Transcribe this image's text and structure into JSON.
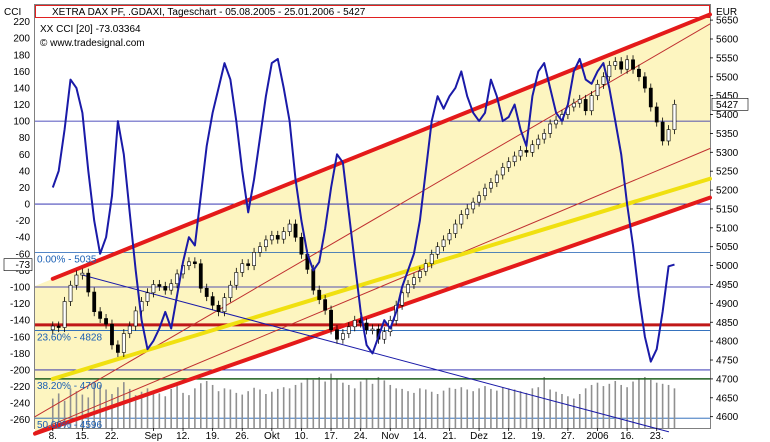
{
  "chart_data": {
    "type": "line",
    "title": "XETRA DAX PF, .GDAXI, Tageschart - 05.08.2005 - 25.01.2006 - 5427",
    "indicator_label": "XX CCI [20] -73.03364",
    "source_label": "© www.tradesignal.com",
    "left_axis": {
      "label": "CCI",
      "range": [
        -270,
        240
      ],
      "ticks": [
        220,
        200,
        180,
        160,
        140,
        120,
        100,
        80,
        60,
        40,
        20,
        0,
        -20,
        -40,
        -60,
        -80,
        -100,
        -120,
        -140,
        -160,
        -180,
        -200,
        -220,
        -240,
        -260
      ],
      "current_label": "-73"
    },
    "right_axis": {
      "label": "EUR",
      "range": [
        4570,
        5690
      ],
      "ticks": [
        5650,
        5600,
        5550,
        5500,
        5450,
        5400,
        5350,
        5300,
        5250,
        5200,
        5150,
        5100,
        5050,
        5000,
        4950,
        4900,
        4850,
        4800,
        4750,
        4700,
        4650,
        4600
      ],
      "current_label": "5427"
    },
    "x_ticks": [
      {
        "day": 3,
        "label": "8."
      },
      {
        "day": 8,
        "label": "15."
      },
      {
        "day": 13,
        "label": "22."
      },
      {
        "day": 20,
        "label": "Sep"
      },
      {
        "day": 25,
        "label": "12."
      },
      {
        "day": 30,
        "label": "19."
      },
      {
        "day": 35,
        "label": "26."
      },
      {
        "day": 40,
        "label": "Okt"
      },
      {
        "day": 45,
        "label": "10."
      },
      {
        "day": 50,
        "label": "17."
      },
      {
        "day": 55,
        "label": "24."
      },
      {
        "day": 60,
        "label": "Nov"
      },
      {
        "day": 65,
        "label": "14."
      },
      {
        "day": 70,
        "label": "21."
      },
      {
        "day": 75,
        "label": "Dez"
      },
      {
        "day": 80,
        "label": "12."
      },
      {
        "day": 85,
        "label": "19."
      },
      {
        "day": 90,
        "label": "27."
      },
      {
        "day": 95,
        "label": "2006"
      },
      {
        "day": 100,
        "label": "16."
      },
      {
        "day": 105,
        "label": "23."
      }
    ],
    "fib_levels": [
      {
        "label": "0.00% - 5035",
        "price": 5035
      },
      {
        "label": "23.60% - 4828",
        "price": 4828
      },
      {
        "label": "38.20% - 4700",
        "price": 4700
      },
      {
        "label": "50.00% - 4596",
        "price": 4596
      }
    ],
    "horizontal_lines": [
      {
        "price": 4843,
        "color": "#c01818"
      },
      {
        "price": 4700,
        "color": "#1f5f1f"
      }
    ],
    "series": [
      {
        "name": "XETRA DAX PF",
        "kind": "candlestick",
        "y_axis": "right",
        "closes": [
          4840,
          4836,
          4905,
          4948,
          4975,
          4980,
          4930,
          4878,
          4860,
          4845,
          4790,
          4770,
          4820,
          4840,
          4880,
          4905,
          4928,
          4950,
          4945,
          4935,
          4952,
          4978,
          5000,
          5010,
          5005,
          4940,
          4918,
          4895,
          4878,
          4915,
          4948,
          4982,
          5005,
          5000,
          5035,
          5050,
          5068,
          5080,
          5070,
          5090,
          5110,
          5075,
          5030,
          4990,
          4935,
          4910,
          4882,
          4830,
          4805,
          4820,
          4838,
          4855,
          4848,
          4830,
          4832,
          4805,
          4825,
          4855,
          4895,
          4928,
          4950,
          4968,
          4985,
          5005,
          5030,
          5050,
          5068,
          5085,
          5110,
          5135,
          5150,
          5168,
          5185,
          5205,
          5220,
          5240,
          5260,
          5275,
          5290,
          5305,
          5300,
          5320,
          5335,
          5350,
          5375,
          5385,
          5400,
          5420,
          5430,
          5440,
          5410,
          5450,
          5480,
          5500,
          5530,
          5540,
          5520,
          5545,
          5520,
          5500,
          5470,
          5420,
          5380,
          5330,
          5360,
          5427
        ],
        "volumes": [
          520,
          610,
          480,
          700,
          650,
          590,
          540,
          820,
          760,
          680,
          600,
          720,
          810,
          690,
          580,
          640,
          700,
          660,
          610,
          560,
          690,
          740,
          620,
          580,
          700,
          790,
          830,
          760,
          650,
          700,
          680,
          620,
          590,
          650,
          710,
          680,
          600,
          640,
          690,
          720,
          700,
          760,
          800,
          880,
          850,
          900,
          820,
          960,
          870,
          800,
          760,
          700,
          820,
          860,
          780,
          900,
          840,
          760,
          700,
          690,
          650,
          620,
          700,
          680,
          640,
          600,
          660,
          710,
          690,
          720,
          680,
          650,
          700,
          740,
          690,
          660,
          720,
          700,
          680,
          650,
          620,
          700,
          720,
          900,
          680,
          640,
          600,
          560,
          520,
          600,
          700,
          760,
          800,
          740,
          780,
          830,
          760,
          720,
          820,
          880,
          900,
          850,
          800,
          780,
          760,
          700
        ]
      },
      {
        "name": "XX CCI [20]",
        "kind": "line",
        "y_axis": "left",
        "color": "#1a1aa8",
        "values": [
          20,
          40,
          90,
          150,
          140,
          110,
          40,
          -20,
          -60,
          -40,
          10,
          100,
          60,
          -10,
          -80,
          -140,
          -175,
          -165,
          -150,
          -130,
          -150,
          -110,
          -70,
          -40,
          -50,
          10,
          70,
          110,
          140,
          170,
          150,
          100,
          40,
          -10,
          30,
          80,
          130,
          170,
          175,
          140,
          100,
          30,
          -20,
          -60,
          -80,
          -70,
          -30,
          20,
          60,
          50,
          -10,
          -70,
          -130,
          -170,
          -180,
          -160,
          -140,
          -150,
          -130,
          -100,
          -80,
          -60,
          -20,
          40,
          100,
          130,
          115,
          130,
          140,
          160,
          130,
          110,
          100,
          110,
          150,
          130,
          100,
          105,
          120,
          90,
          70,
          130,
          160,
          170,
          140,
          110,
          100,
          120,
          160,
          175,
          150,
          145,
          160,
          170,
          140,
          100,
          60,
          0,
          -50,
          -110,
          -160,
          -190,
          -175,
          -130,
          -75,
          -73
        ],
        "current": -73.03364
      }
    ],
    "trendlines": [
      {
        "style": "channel-upper",
        "color": "#e41a1a",
        "from": {
          "day": 3,
          "price": 4965
        },
        "to": {
          "day": 114,
          "price": 5665
        }
      },
      {
        "style": "channel-mid-thin",
        "color": "#c03030",
        "from": {
          "day": 0,
          "price": 4600
        },
        "to": {
          "day": 114,
          "price": 5640
        }
      },
      {
        "style": "channel-mid-thin",
        "color": "#c03030",
        "from": {
          "day": 0,
          "price": 4560
        },
        "to": {
          "day": 114,
          "price": 5310
        }
      },
      {
        "style": "channel-lower",
        "color": "#e41a1a",
        "from": {
          "day": 0,
          "price": 4555
        },
        "to": {
          "day": 114,
          "price": 5180
        }
      },
      {
        "style": "regression",
        "color": "#f0e010",
        "from": {
          "day": 3,
          "price": 4700
        },
        "to": {
          "day": 114,
          "price": 5230
        }
      },
      {
        "style": "downtrend",
        "color": "#1a1aa8",
        "from": {
          "day": 8,
          "price": 4975
        },
        "to": {
          "day": 107,
          "price": 4560
        }
      }
    ]
  }
}
